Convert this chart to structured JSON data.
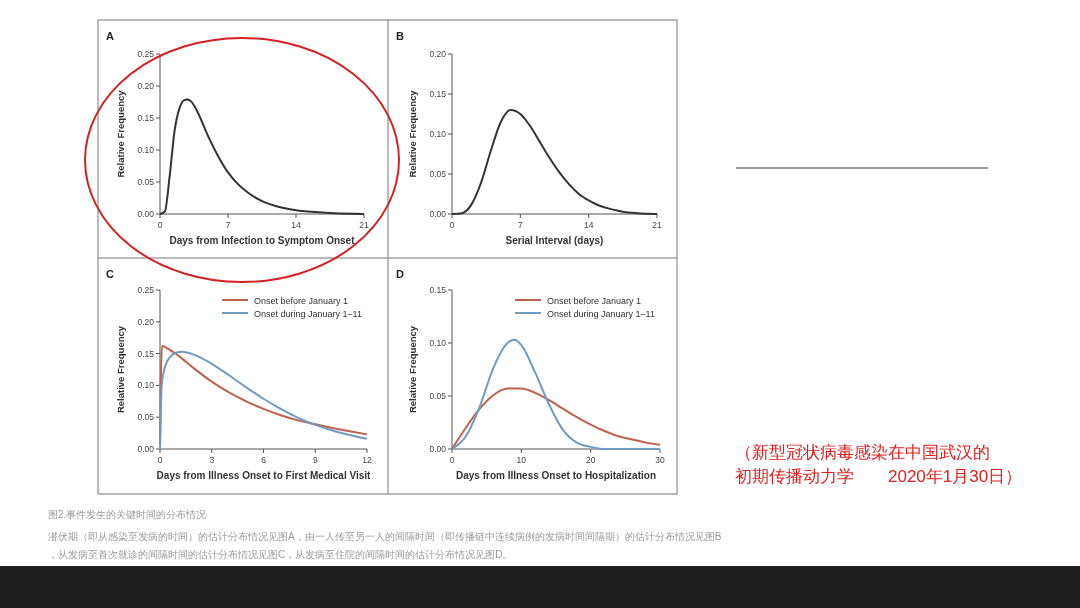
{
  "chart_data": [
    {
      "type": "line",
      "title": "A",
      "xlabel": "Days from Infection to Symptom Onset",
      "ylabel": "Relative Frequency",
      "xlim": [
        0,
        21
      ],
      "xticks": [
        0,
        7,
        14,
        21
      ],
      "ylim": [
        0,
        0.25
      ],
      "yticks": [
        {
          "value": 0,
          "label": "0.00"
        },
        {
          "value": 0.05,
          "label": "0.05"
        },
        {
          "value": 0.1,
          "label": "0.10"
        },
        {
          "value": 0.15,
          "label": "0.15"
        },
        {
          "value": 0.2,
          "label": "0.20"
        },
        {
          "value": 0.25,
          "label": "0.25"
        }
      ],
      "series": [
        {
          "color": "#333333",
          "x": [
            0,
            0.5,
            1,
            1.5,
            2,
            2.5,
            2.8,
            3.2,
            3.6,
            4,
            5,
            6,
            7,
            8,
            9,
            10,
            11,
            12,
            14,
            16,
            18,
            21
          ],
          "values": [
            0,
            0.004,
            0.06,
            0.13,
            0.165,
            0.178,
            0.179,
            0.176,
            0.167,
            0.155,
            0.12,
            0.09,
            0.065,
            0.047,
            0.034,
            0.024,
            0.017,
            0.012,
            0.006,
            0.003,
            0.001,
            0
          ]
        }
      ],
      "annotations": [
        "图2.事件发生的关键时间的分布情况",
        "潜伏期（即从感染至发病的时间）的估计分布情况见图A，由一人传至另一人的间隔时间（即传播链中连续病例的发病时间间隔期）的估计分布情况见图B，从发病至首次就诊的间隔时间的估计分布情况见图C，从发病至住院的间隔时间的估计分布情况见图D。",
        "（新型冠状病毒感染在中国武汉的初期传播动力学　　2020年1月30日）"
      ]
    },
    {
      "type": "line",
      "title": "B",
      "xlabel": "Serial Interval (days)",
      "ylabel": "Relative Frequency",
      "xlim": [
        0,
        21
      ],
      "xticks": [
        0,
        7,
        14,
        21
      ],
      "ylim": [
        0,
        0.2
      ],
      "yticks": [
        {
          "value": 0,
          "label": "0.00"
        },
        {
          "value": 0.05,
          "label": "0.05"
        },
        {
          "value": 0.1,
          "label": "0.10"
        },
        {
          "value": 0.15,
          "label": "0.15"
        },
        {
          "value": 0.2,
          "label": "0.20"
        }
      ],
      "series": [
        {
          "color": "#333333",
          "x": [
            0,
            1,
            2,
            3,
            4,
            5,
            6,
            7,
            8,
            9,
            10,
            11,
            12,
            13,
            14,
            15,
            16,
            17,
            18,
            19,
            21
          ],
          "values": [
            0,
            0.001,
            0.012,
            0.04,
            0.08,
            0.115,
            0.13,
            0.125,
            0.11,
            0.09,
            0.07,
            0.052,
            0.037,
            0.025,
            0.017,
            0.011,
            0.007,
            0.004,
            0.002,
            0.001,
            0
          ]
        }
      ]
    },
    {
      "type": "line",
      "title": "C",
      "xlabel": "Days from Illness Onset to First Medical Visit",
      "ylabel": "Relative Frequency",
      "xlim": [
        0,
        12
      ],
      "xticks": [
        0,
        3,
        6,
        9,
        12
      ],
      "ylim": [
        0,
        0.25
      ],
      "yticks": [
        {
          "value": 0,
          "label": "0.00"
        },
        {
          "value": 0.05,
          "label": "0.05"
        },
        {
          "value": 0.1,
          "label": "0.10"
        },
        {
          "value": 0.15,
          "label": "0.15"
        },
        {
          "value": 0.2,
          "label": "0.20"
        },
        {
          "value": 0.25,
          "label": "0.25"
        }
      ],
      "legend": "top right",
      "series": [
        {
          "name": "Onset before January 1",
          "color": "#c0604a",
          "x": [
            0,
            0.05,
            0.12,
            0.5,
            1,
            2,
            3,
            4,
            5,
            6,
            7,
            8,
            9,
            10,
            11,
            12
          ],
          "values": [
            0,
            0.11,
            0.162,
            0.157,
            0.148,
            0.126,
            0.106,
            0.089,
            0.075,
            0.063,
            0.053,
            0.045,
            0.039,
            0.033,
            0.028,
            0.023
          ]
        },
        {
          "name": "Onset during January 1–11",
          "color": "#6e9cc0",
          "x": [
            0,
            0.1,
            0.3,
            0.6,
            1,
            1.3,
            2,
            3,
            4,
            5,
            6,
            7,
            8,
            9,
            10,
            11,
            12
          ],
          "values": [
            0,
            0.1,
            0.13,
            0.145,
            0.152,
            0.153,
            0.148,
            0.134,
            0.116,
            0.097,
            0.079,
            0.063,
            0.049,
            0.038,
            0.029,
            0.022,
            0.016
          ]
        }
      ]
    },
    {
      "type": "line",
      "title": "D",
      "xlabel": "Days from Illness Onset to Hospitalization",
      "ylabel": "Relative Frequency",
      "xlim": [
        0,
        30
      ],
      "xticks": [
        0,
        10,
        20,
        30
      ],
      "ylim": [
        0,
        0.15
      ],
      "yticks": [
        {
          "value": 0,
          "label": "0.00"
        },
        {
          "value": 0.05,
          "label": "0.05"
        },
        {
          "value": 0.1,
          "label": "0.10"
        },
        {
          "value": 0.15,
          "label": "0.15"
        }
      ],
      "legend": "top right",
      "series": [
        {
          "name": "Onset before January 1",
          "color": "#c0604a",
          "x": [
            0,
            2,
            4,
            6,
            8,
            10,
            12,
            14,
            16,
            18,
            20,
            22,
            24,
            26,
            28,
            30
          ],
          "values": [
            0,
            0.02,
            0.038,
            0.051,
            0.057,
            0.057,
            0.053,
            0.046,
            0.038,
            0.03,
            0.023,
            0.017,
            0.012,
            0.009,
            0.006,
            0.004
          ]
        },
        {
          "name": "Onset during January 1–11",
          "color": "#6e9cc0",
          "x": [
            0,
            2,
            4,
            6,
            8,
            9,
            10,
            12,
            14,
            16,
            18,
            20,
            22,
            30
          ],
          "values": [
            0,
            0.012,
            0.04,
            0.077,
            0.1,
            0.103,
            0.098,
            0.072,
            0.042,
            0.018,
            0.006,
            0.002,
            0,
            0
          ]
        }
      ]
    }
  ]
}
